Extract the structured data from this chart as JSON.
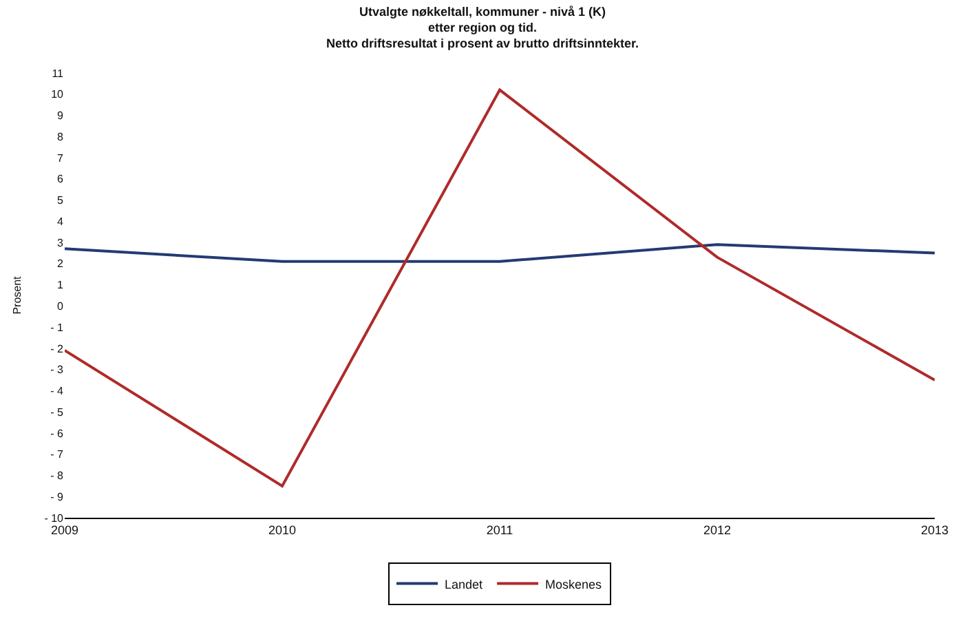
{
  "chart_data": {
    "type": "line",
    "title": "Utvalgte nøkkeltall, kommuner - nivå 1 (K)\netter region og tid.\nNetto driftsresultat i prosent av brutto driftsinntekter.",
    "ylabel": "Prosent",
    "x": [
      2009,
      2010,
      2011,
      2012,
      2013
    ],
    "xlim": [
      2009,
      2013
    ],
    "xticks": [
      2009,
      2010,
      2011,
      2012,
      2013
    ],
    "ylim": [
      -10,
      11
    ],
    "yticks": [
      -10,
      -9,
      -8,
      -7,
      -6,
      -5,
      -4,
      -3,
      -2,
      -1,
      0,
      1,
      2,
      3,
      4,
      5,
      6,
      7,
      8,
      9,
      10,
      11
    ],
    "series": [
      {
        "name": "Landet",
        "color": "#243a73",
        "values": [
          2.7,
          2.1,
          2.1,
          2.9,
          2.5
        ]
      },
      {
        "name": "Moskenes",
        "color": "#b02a2a",
        "values": [
          -2.1,
          -8.5,
          10.2,
          2.3,
          -3.5
        ]
      }
    ],
    "legend": "bottom",
    "grid": false,
    "marker": "none",
    "line_style": "solid"
  }
}
